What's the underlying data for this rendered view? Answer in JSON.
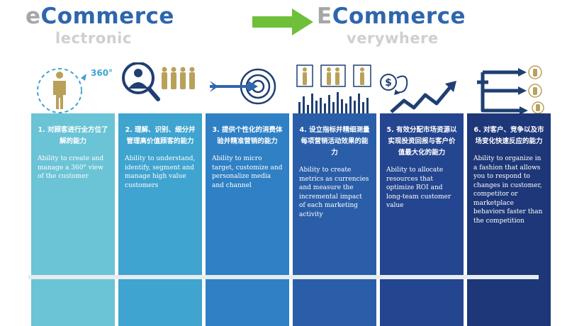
{
  "header": {
    "left": {
      "initial": "e",
      "main": "Commerce",
      "sub": "lectronic"
    },
    "right": {
      "initial": "E",
      "main": "Commerce",
      "sub": "verywhere"
    }
  },
  "colors": {
    "grey_text": "#a6a6a6",
    "blue_text": "#2e66ad",
    "arrow": "#6fbf3a",
    "icon_gold": "#b9a15a",
    "icon_navy": "#1f3f73"
  },
  "panels": [
    {
      "cn": "1. 对顾客进行全方位了解的能力",
      "en": "Ability to create and manage a 360° view of the customer",
      "color": "#6bc3d6",
      "icon": "person-360-icon",
      "badge": "360°"
    },
    {
      "cn": "2. 理解、识别、细分并管理高价值顾客的能力",
      "en": "Ability to understand, identify, segment and manage high value customers",
      "color": "#3fa4cf",
      "icon": "magnifier-people-icon"
    },
    {
      "cn": "3. 提供个性化的消费体验并精准营销的能力",
      "en": "Ability to micro target, customize and personalize media and channel",
      "color": "#2f80c4",
      "icon": "target-arrow-icon"
    },
    {
      "cn": "4. 设立指标并精细测量每项营销活动效果的能力",
      "en": "Ability to create metrics as currencies and measure the incremental impact of each marketing activity",
      "color": "#2a5ea8",
      "icon": "people-metrics-icon"
    },
    {
      "cn": "5. 有效分配市场资源以实现投资回报与客户价值最大化的能力",
      "en": "Ability to allocate resources that optimize ROI and long-team customer value",
      "color": "#24458f",
      "icon": "dollar-growth-icon"
    },
    {
      "cn": "6. 对客户、竞争以及市场变化快速反应的能力",
      "en": "Ability to organize in a fashion that allows you to respond to changes in customer, competitor or marketplace behaviors faster than the competition",
      "color": "#1d3778",
      "icon": "network-e-icon"
    }
  ]
}
